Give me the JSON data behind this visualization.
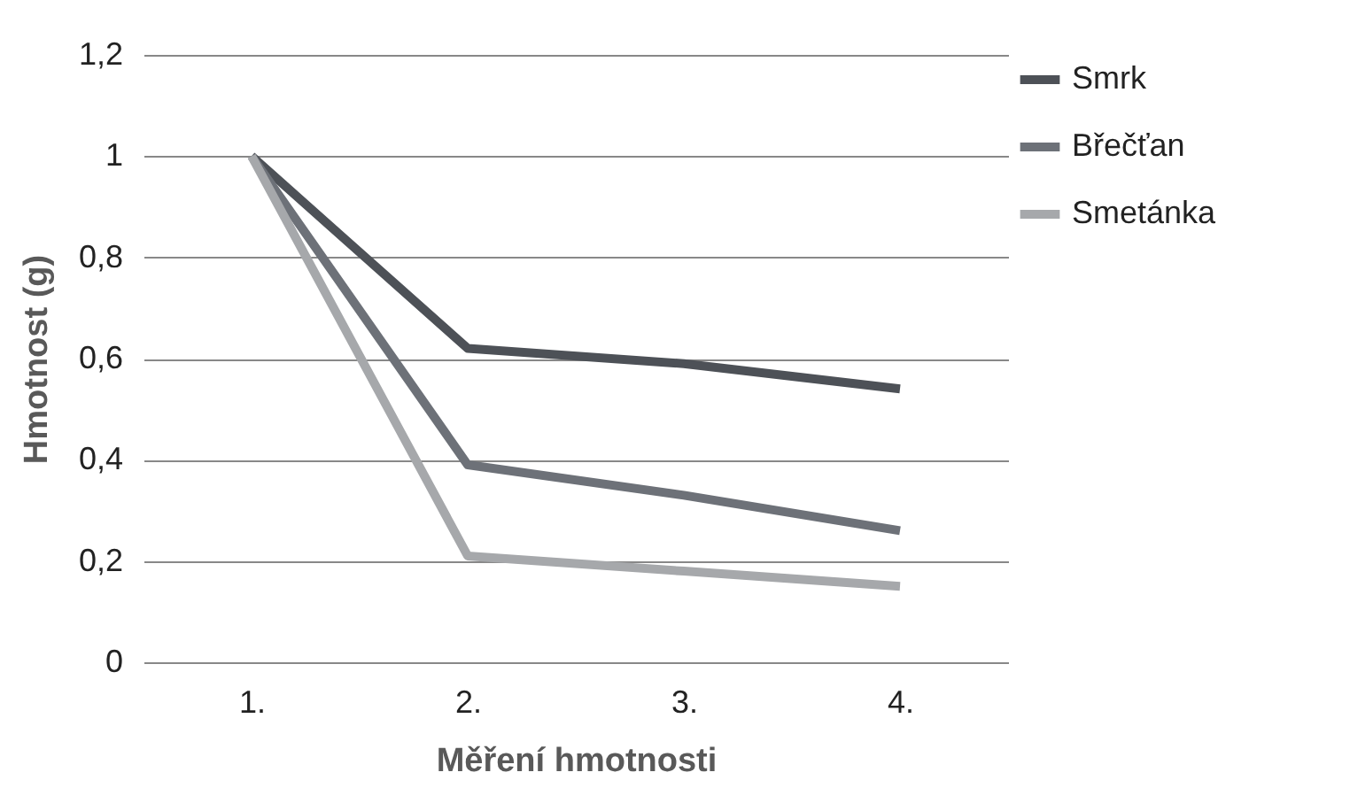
{
  "chart_data": {
    "type": "line",
    "xlabel": "Měření hmotnosti",
    "ylabel": "Hmotnost (g)",
    "categories": [
      "1.",
      "2.",
      "3.",
      "4."
    ],
    "series": [
      {
        "name": "Smrk",
        "color": "#4d5157",
        "values": [
          1,
          0.62,
          0.59,
          0.54
        ]
      },
      {
        "name": "Břečťan",
        "color": "#6d7178",
        "values": [
          1,
          0.39,
          0.33,
          0.26
        ]
      },
      {
        "name": "Smetánka",
        "color": "#a6a8ab",
        "values": [
          1,
          0.21,
          0.18,
          0.15
        ]
      }
    ],
    "ylim": [
      0,
      1.2
    ],
    "yticks": [
      0,
      {
        "value": 0.2,
        "label": "0,2"
      },
      {
        "value": 0.4,
        "label": "0,4"
      },
      {
        "value": 0.6,
        "label": "0,6"
      },
      {
        "value": 0.8,
        "label": "0,8"
      },
      1,
      {
        "value": 1.2,
        "label": "1,2"
      }
    ],
    "grid": "y",
    "legend": "right",
    "line_style": "solid",
    "marker": "none"
  }
}
